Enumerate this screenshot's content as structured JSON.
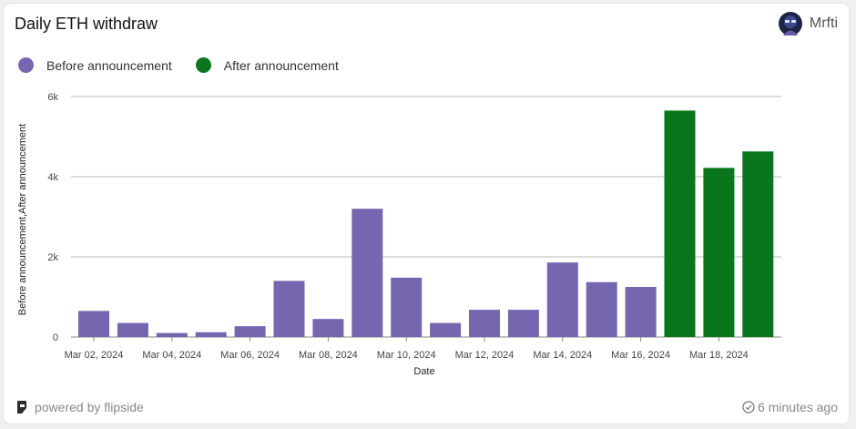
{
  "header": {
    "title": "Daily ETH withdraw",
    "author": "Mrfti"
  },
  "footer": {
    "powered_by": "powered by flipside",
    "updated": "6 minutes ago"
  },
  "icons": {
    "avatar": "avatar-icon",
    "logo": "flipside-logo-icon",
    "updated": "check-circle-icon"
  },
  "colors": {
    "before": "#7666b0",
    "after": "#0a761c",
    "grid": "#b8b8b8"
  },
  "chart_data": {
    "type": "bar",
    "title": "Daily ETH withdraw",
    "xlabel": "Date",
    "ylabel": "Before announcement,After announcement",
    "ylim": [
      0,
      6000
    ],
    "yticks": [
      0,
      2000,
      4000,
      6000
    ],
    "ytick_labels": [
      "0",
      "2k",
      "4k",
      "6k"
    ],
    "xtick_labels": [
      "Mar 02, 2024",
      "Mar 04, 2024",
      "Mar 06, 2024",
      "Mar 08, 2024",
      "Mar 10, 2024",
      "Mar 12, 2024",
      "Mar 14, 2024",
      "Mar 16, 2024",
      "Mar 18, 2024"
    ],
    "grid": true,
    "legend_position": "top-left",
    "categories": [
      "Mar 02, 2024",
      "Mar 03, 2024",
      "Mar 04, 2024",
      "Mar 05, 2024",
      "Mar 06, 2024",
      "Mar 07, 2024",
      "Mar 08, 2024",
      "Mar 09, 2024",
      "Mar 10, 2024",
      "Mar 11, 2024",
      "Mar 12, 2024",
      "Mar 13, 2024",
      "Mar 14, 2024",
      "Mar 15, 2024",
      "Mar 16, 2024",
      "Mar 17, 2024",
      "Mar 18, 2024",
      "Mar 19, 2024"
    ],
    "series": [
      {
        "name": "Before announcement",
        "values": [
          650,
          350,
          100,
          120,
          270,
          1400,
          450,
          3200,
          1480,
          350,
          680,
          680,
          1860,
          1370,
          1250,
          null,
          null,
          null
        ]
      },
      {
        "name": "After announcement",
        "values": [
          null,
          null,
          null,
          null,
          null,
          null,
          null,
          null,
          null,
          null,
          null,
          null,
          null,
          null,
          null,
          5650,
          4220,
          4630
        ]
      }
    ]
  }
}
